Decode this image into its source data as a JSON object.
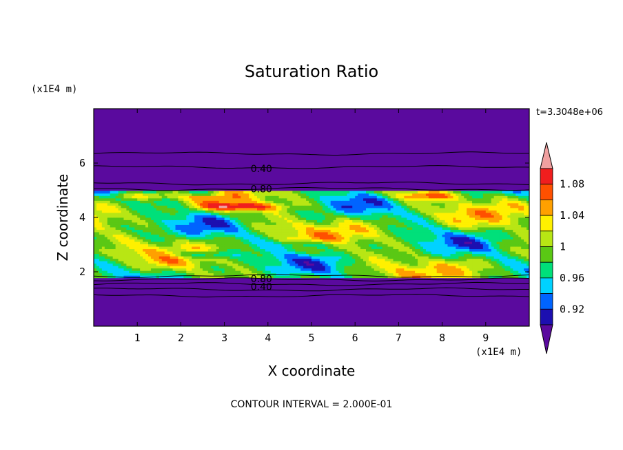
{
  "chart_data": {
    "type": "heatmap",
    "title": "Saturation Ratio",
    "xlabel": "X coordinate",
    "ylabel": "Z coordinate",
    "x_unit": "(x1E4 m)",
    "y_unit": "(x1E4 m)",
    "time_label": "t=3.3048e+06",
    "footer": "CONTOUR INTERVAL = 2.000E-01",
    "xlim": [
      0,
      10
    ],
    "ylim": [
      0,
      8
    ],
    "x_ticks": [
      "1",
      "2",
      "3",
      "4",
      "5",
      "6",
      "7",
      "8",
      "9"
    ],
    "y_ticks": [
      "2",
      "4",
      "6"
    ],
    "grid": false,
    "contour_labels": [
      {
        "text": "0.40",
        "x": 3.85,
        "z": 5.8
      },
      {
        "text": "0.80",
        "x": 3.85,
        "z": 5.05
      },
      {
        "text": "0.80",
        "x": 3.85,
        "z": 1.75
      },
      {
        "text": "0.40",
        "x": 3.85,
        "z": 1.45
      }
    ],
    "colorbar": {
      "labels": [
        "1.08",
        "1.04",
        "1",
        "0.96",
        "0.92"
      ],
      "levels": [
        0.9,
        0.92,
        0.94,
        0.96,
        0.98,
        1.0,
        1.02,
        1.04,
        1.06,
        1.08,
        1.1
      ],
      "colors": [
        "#5a0a9e",
        "#1c0fb0",
        "#0064ff",
        "#00d2ff",
        "#00e07a",
        "#5ac814",
        "#b8e614",
        "#fff000",
        "#ffa000",
        "#ff5000",
        "#f01e1e",
        "#f0a0a0"
      ]
    }
  }
}
